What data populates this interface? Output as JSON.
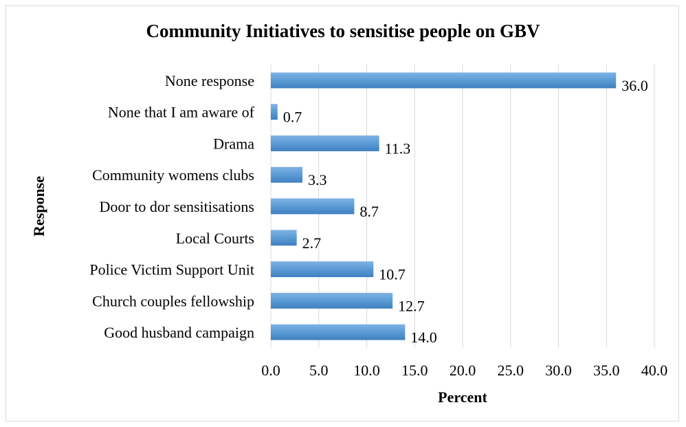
{
  "chart_data": {
    "type": "bar",
    "orientation": "horizontal",
    "title": "Community Initiatives to sensitise people on GBV",
    "xlabel": "Percent",
    "ylabel": "Response",
    "categories": [
      "None response",
      "None that I am aware of",
      "Drama",
      "Community womens clubs",
      "Door to dor sensitisations",
      "Local Courts",
      "Police Victim Support Unit",
      "Church couples fellowship",
      "Good husband campaign"
    ],
    "values": [
      36.0,
      0.7,
      11.3,
      3.3,
      8.7,
      2.7,
      10.7,
      12.7,
      14.0
    ],
    "data_labels": [
      "36.0",
      "0.7",
      "11.3",
      "3.3",
      "8.7",
      "2.7",
      "10.7",
      "12.7",
      "14.0"
    ],
    "xlim": [
      0,
      40
    ],
    "xticks": [
      "0.0",
      "5.0",
      "10.0",
      "15.0",
      "20.0",
      "25.0",
      "30.0",
      "35.0",
      "40.0"
    ],
    "grid": "vertical",
    "legend": "none",
    "bar_color": "#5b9bd5"
  }
}
